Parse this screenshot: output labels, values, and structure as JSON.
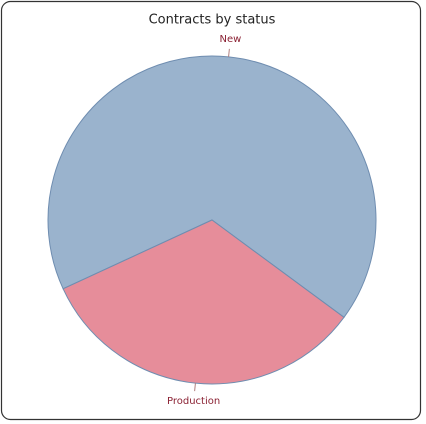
{
  "chart_data": {
    "type": "pie",
    "title": "Contracts by status",
    "categories": [
      "New",
      "Production"
    ],
    "values": [
      67,
      33
    ],
    "colors": [
      "#9ab3cd",
      "#e68d9a"
    ]
  }
}
